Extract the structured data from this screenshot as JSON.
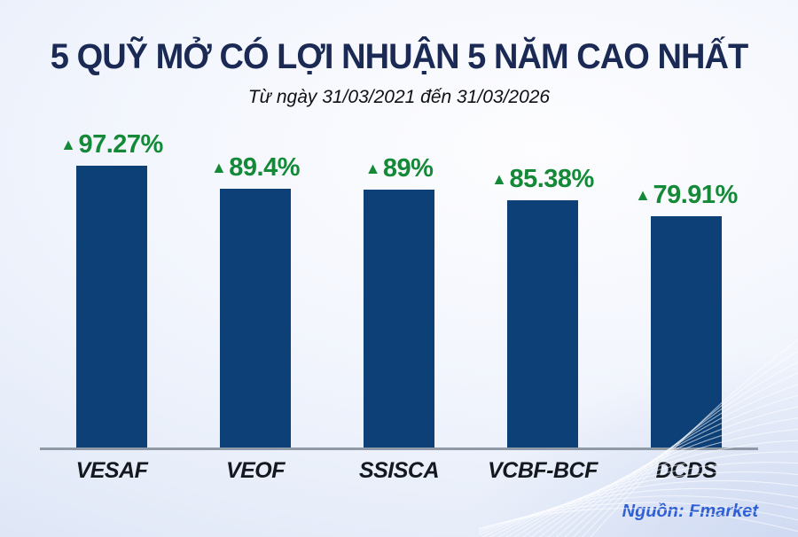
{
  "page": {
    "title": "5 QUỸ MỞ CÓ LỢI NHUẬN 5 NĂM CAO NHẤT",
    "subtitle": "Từ ngày 31/03/2021 đến 31/03/2026",
    "source": "Nguồn: Fmarket"
  },
  "colors": {
    "bar": "#0d4077",
    "value_green": "#148a38",
    "title_navy": "#1a2a55",
    "category_label": "#14181f",
    "axis_line": "#9099a6",
    "source_blue": "#2e5fd4",
    "background_light": "#eef3fb",
    "background_edge": "#d7e0f4"
  },
  "chart_data": {
    "type": "bar",
    "title": "5 QUỸ MỞ CÓ LỢI NHUẬN 5 NĂM CAO NHẤT",
    "subtitle": "Từ ngày 31/03/2021 đến 31/03/2026",
    "categories": [
      "VESAF",
      "VEOF",
      "SSISCA",
      "VCBF-BCF",
      "DCDS"
    ],
    "values": [
      97.27,
      89.4,
      89,
      85.38,
      79.91
    ],
    "value_labels": [
      "97.27%",
      "89.4%",
      "89%",
      "85.38%",
      "79.91%"
    ],
    "marker": "▲",
    "unit": "%",
    "xlabel": "",
    "ylabel": "",
    "ylim": [
      0,
      100
    ],
    "grid": false,
    "legend": false,
    "source": "Nguồn: Fmarket"
  }
}
